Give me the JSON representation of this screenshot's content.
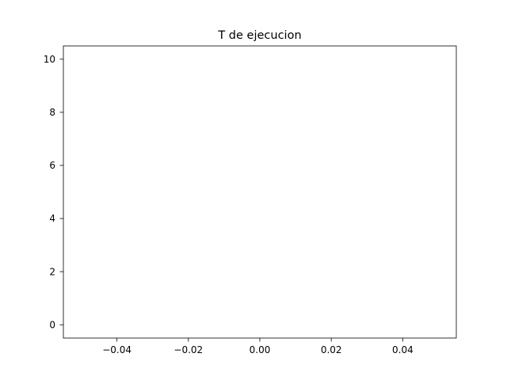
{
  "chart_data": {
    "type": "line",
    "title": "T de ejecucion",
    "xlabel": "",
    "ylabel": "",
    "xlim": [
      -0.055,
      0.055
    ],
    "ylim": [
      -0.5,
      10.5
    ],
    "x_ticks": [
      -0.04,
      -0.02,
      0.0,
      0.02,
      0.04
    ],
    "x_tick_labels": [
      "−0.04",
      "−0.02",
      "0.00",
      "0.02",
      "0.04"
    ],
    "y_ticks": [
      0,
      2,
      4,
      6,
      8,
      10
    ],
    "y_tick_labels": [
      "0",
      "2",
      "4",
      "6",
      "8",
      "10"
    ],
    "grid": false,
    "series": [
      {
        "x": [],
        "y": [],
        "color": "#1f77b4"
      }
    ]
  }
}
